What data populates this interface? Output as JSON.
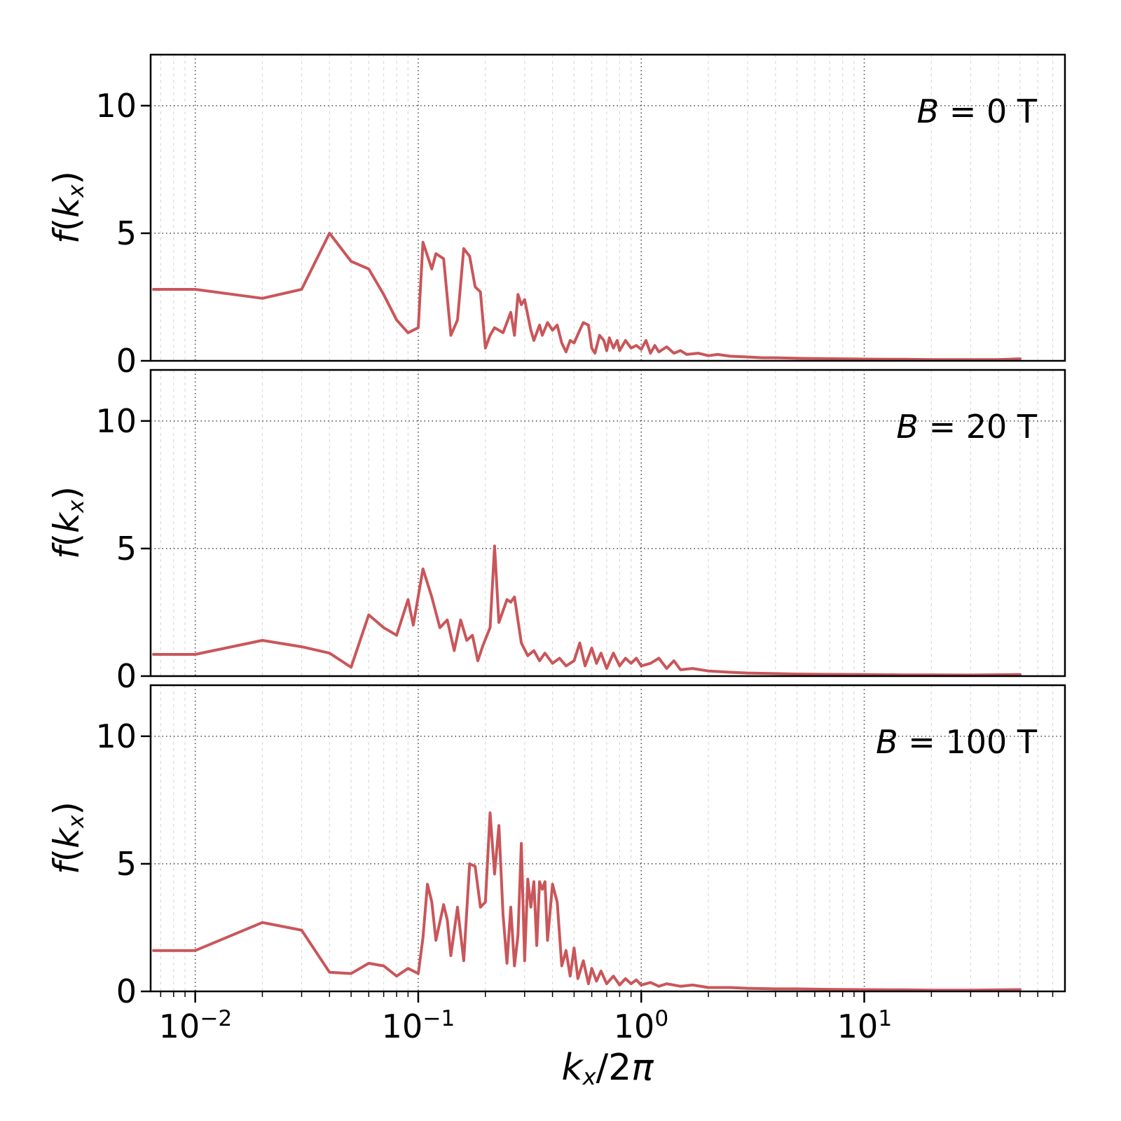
{
  "figure": {
    "background": "#ffffff",
    "series_color": "#c9565a",
    "axis_color": "#000000",
    "grid_major_color": "#444444",
    "grid_minor_color": "#bdbdbd",
    "y_ticks": [
      "0",
      "5",
      "10"
    ],
    "x_ticks": [
      {
        "base": "10",
        "exp": "−2"
      },
      {
        "base": "10",
        "exp": "−1"
      },
      {
        "base": "10",
        "exp": "0"
      },
      {
        "base": "10",
        "exp": "1"
      }
    ],
    "xlabel": {
      "kvar": "k",
      "sub": "x",
      "slash": "/2",
      "pi": "π",
      "plain": "k_x/2π"
    },
    "ylabel": {
      "fvar": "f",
      "open": "(",
      "kvar": "k",
      "sub": "x",
      "close": ")",
      "plain": "f(k_x)"
    }
  },
  "chart_data": [
    {
      "type": "line",
      "name": "B = 0 T",
      "annotation": {
        "symbol": "B",
        "rest": " = 0 T"
      },
      "xscale": "log",
      "xlabel": "k_x/2π",
      "ylabel": "f(k_x)",
      "xlim": [
        0.0063,
        79.4
      ],
      "ylim": [
        0,
        12
      ],
      "grid": true,
      "x": [
        0.0065,
        0.01,
        0.02,
        0.03,
        0.04,
        0.05,
        0.06,
        0.07,
        0.08,
        0.09,
        0.1,
        0.105,
        0.115,
        0.12,
        0.13,
        0.14,
        0.15,
        0.16,
        0.17,
        0.18,
        0.19,
        0.2,
        0.21,
        0.22,
        0.24,
        0.26,
        0.27,
        0.28,
        0.29,
        0.3,
        0.32,
        0.33,
        0.35,
        0.36,
        0.38,
        0.4,
        0.42,
        0.44,
        0.46,
        0.48,
        0.5,
        0.53,
        0.55,
        0.58,
        0.6,
        0.62,
        0.65,
        0.68,
        0.7,
        0.72,
        0.75,
        0.78,
        0.8,
        0.85,
        0.9,
        0.95,
        1.0,
        1.05,
        1.1,
        1.15,
        1.2,
        1.3,
        1.4,
        1.5,
        1.6,
        1.8,
        2.0,
        2.2,
        2.5,
        3.0,
        3.5,
        4.0,
        5.0,
        6.0,
        8.0,
        10,
        15,
        20,
        30,
        40,
        50
      ],
      "y": [
        2.8,
        2.8,
        2.45,
        2.8,
        5.0,
        3.9,
        3.6,
        2.6,
        1.6,
        1.1,
        1.3,
        4.65,
        3.6,
        4.2,
        4.0,
        1.0,
        1.6,
        4.4,
        4.1,
        2.9,
        2.7,
        0.5,
        1.0,
        1.3,
        1.1,
        1.9,
        1.0,
        2.6,
        2.2,
        2.4,
        1.2,
        0.8,
        1.4,
        1.0,
        1.5,
        1.2,
        1.4,
        0.7,
        0.35,
        0.8,
        0.7,
        1.2,
        1.5,
        1.4,
        0.5,
        0.3,
        1.0,
        0.8,
        0.4,
        0.9,
        0.5,
        0.8,
        0.4,
        0.8,
        0.5,
        0.6,
        0.45,
        0.8,
        0.3,
        0.6,
        0.35,
        0.55,
        0.3,
        0.4,
        0.25,
        0.3,
        0.2,
        0.25,
        0.18,
        0.15,
        0.12,
        0.12,
        0.1,
        0.09,
        0.08,
        0.07,
        0.06,
        0.05,
        0.05,
        0.05,
        0.08
      ]
    },
    {
      "type": "line",
      "name": "B = 20 T",
      "annotation": {
        "symbol": "B",
        "rest": " = 20 T"
      },
      "xscale": "log",
      "xlabel": "k_x/2π",
      "ylabel": "f(k_x)",
      "xlim": [
        0.0063,
        79.4
      ],
      "ylim": [
        0,
        12
      ],
      "grid": true,
      "x": [
        0.0065,
        0.01,
        0.02,
        0.03,
        0.04,
        0.05,
        0.06,
        0.07,
        0.08,
        0.09,
        0.095,
        0.105,
        0.115,
        0.125,
        0.135,
        0.145,
        0.155,
        0.165,
        0.175,
        0.185,
        0.195,
        0.21,
        0.22,
        0.23,
        0.25,
        0.26,
        0.27,
        0.29,
        0.31,
        0.33,
        0.35,
        0.37,
        0.4,
        0.43,
        0.46,
        0.5,
        0.53,
        0.56,
        0.6,
        0.63,
        0.66,
        0.7,
        0.75,
        0.8,
        0.85,
        0.9,
        0.95,
        1.0,
        1.1,
        1.2,
        1.3,
        1.4,
        1.5,
        1.7,
        2.0,
        2.5,
        3.0,
        4.0,
        5.0,
        7.0,
        10,
        15,
        20,
        30,
        50
      ],
      "y": [
        0.85,
        0.85,
        1.4,
        1.15,
        0.9,
        0.35,
        2.4,
        1.9,
        1.6,
        3.0,
        2.0,
        4.2,
        3.1,
        1.9,
        2.2,
        1.0,
        2.2,
        1.4,
        1.6,
        0.6,
        1.2,
        1.9,
        5.1,
        2.1,
        3.0,
        2.9,
        3.1,
        1.3,
        0.8,
        1.0,
        0.6,
        0.9,
        0.5,
        0.7,
        0.4,
        0.6,
        1.3,
        0.4,
        1.1,
        0.5,
        0.9,
        0.3,
        0.9,
        0.4,
        0.7,
        0.5,
        0.7,
        0.4,
        0.5,
        0.7,
        0.3,
        0.6,
        0.25,
        0.3,
        0.2,
        0.15,
        0.12,
        0.1,
        0.08,
        0.07,
        0.06,
        0.05,
        0.05,
        0.04,
        0.06
      ]
    },
    {
      "type": "line",
      "name": "B = 100 T",
      "annotation": {
        "symbol": "B",
        "rest": " = 100 T"
      },
      "xscale": "log",
      "xlabel": "k_x/2π",
      "ylabel": "f(k_x)",
      "xlim": [
        0.0063,
        79.4
      ],
      "ylim": [
        0,
        12
      ],
      "grid": true,
      "x": [
        0.0065,
        0.01,
        0.02,
        0.03,
        0.04,
        0.05,
        0.06,
        0.07,
        0.08,
        0.09,
        0.1,
        0.105,
        0.11,
        0.115,
        0.12,
        0.13,
        0.135,
        0.14,
        0.15,
        0.16,
        0.17,
        0.18,
        0.19,
        0.2,
        0.21,
        0.22,
        0.23,
        0.24,
        0.25,
        0.26,
        0.27,
        0.28,
        0.29,
        0.3,
        0.31,
        0.32,
        0.33,
        0.34,
        0.35,
        0.36,
        0.37,
        0.38,
        0.4,
        0.42,
        0.44,
        0.46,
        0.48,
        0.5,
        0.52,
        0.55,
        0.58,
        0.6,
        0.63,
        0.66,
        0.7,
        0.75,
        0.8,
        0.85,
        0.9,
        0.95,
        1.0,
        1.1,
        1.2,
        1.3,
        1.5,
        1.7,
        2.0,
        2.5,
        3.0,
        4.0,
        5.0,
        7.0,
        10,
        15,
        20,
        30,
        50
      ],
      "y": [
        1.6,
        1.6,
        2.7,
        2.4,
        0.75,
        0.7,
        1.1,
        1.0,
        0.6,
        0.9,
        0.7,
        2.1,
        4.2,
        3.5,
        2.0,
        3.4,
        2.8,
        1.4,
        3.3,
        1.2,
        5.0,
        4.9,
        3.3,
        3.5,
        7.0,
        4.6,
        6.5,
        3.0,
        1.1,
        3.3,
        1.0,
        2.2,
        5.8,
        1.2,
        4.4,
        3.3,
        4.3,
        1.8,
        4.3,
        4.0,
        4.3,
        2.0,
        4.2,
        3.5,
        1.0,
        1.6,
        0.6,
        1.7,
        0.5,
        1.2,
        0.3,
        0.9,
        0.4,
        0.8,
        0.3,
        0.6,
        0.25,
        0.5,
        0.3,
        0.45,
        0.25,
        0.35,
        0.2,
        0.3,
        0.2,
        0.25,
        0.15,
        0.15,
        0.12,
        0.1,
        0.1,
        0.08,
        0.07,
        0.06,
        0.05,
        0.05,
        0.07
      ]
    }
  ]
}
